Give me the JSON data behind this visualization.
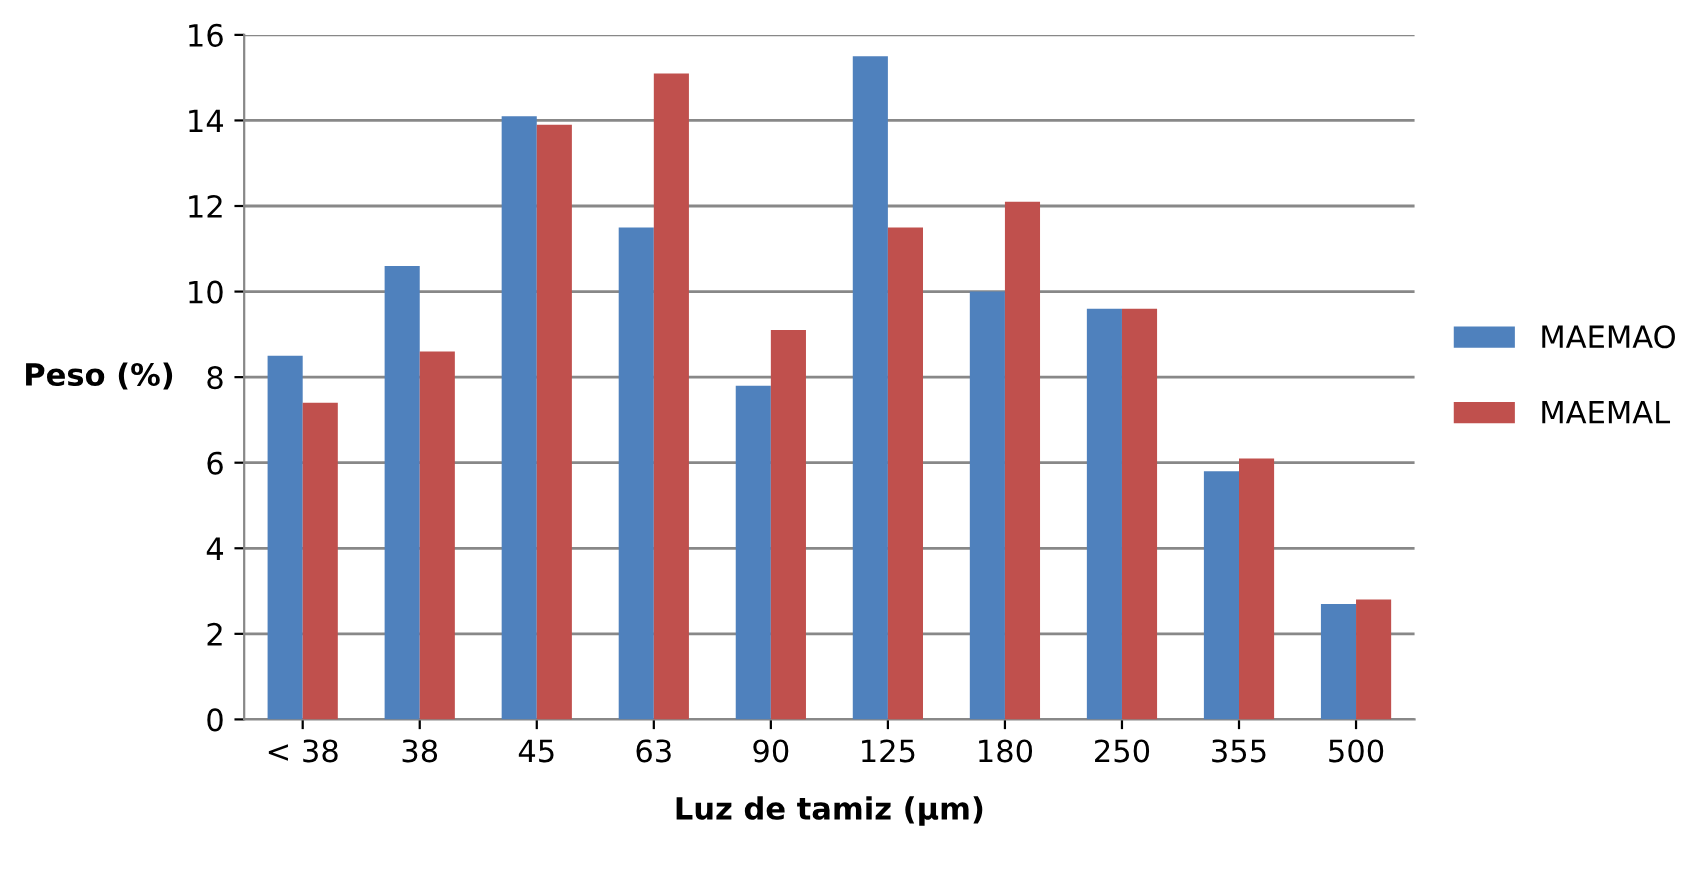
{
  "chart_data": {
    "type": "bar",
    "xlabel": "Luz de tamiz (μm)",
    "ylabel": "Peso (%)",
    "categories": [
      "< 38",
      "38",
      "45",
      "63",
      "90",
      "125",
      "180",
      "250",
      "355",
      "500"
    ],
    "series": [
      {
        "name": "MAEMAO",
        "color": "#4f81bd",
        "values": [
          8.5,
          10.6,
          14.1,
          11.5,
          7.8,
          15.5,
          10.0,
          9.6,
          5.8,
          2.7
        ]
      },
      {
        "name": "MAEMAL",
        "color": "#c0504d",
        "values": [
          7.4,
          8.6,
          13.9,
          15.1,
          9.1,
          11.5,
          12.1,
          9.6,
          6.1,
          2.8
        ]
      }
    ],
    "ylim": [
      0,
      16
    ],
    "yticks": [
      0,
      2,
      4,
      6,
      8,
      10,
      12,
      14,
      16
    ],
    "grid": "y",
    "legend": "right"
  }
}
